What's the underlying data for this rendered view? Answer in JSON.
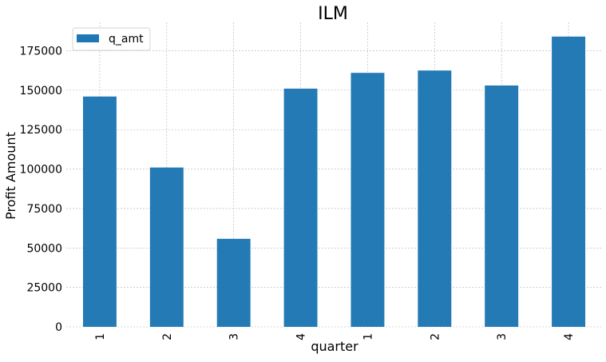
{
  "chart_data": {
    "type": "bar",
    "title": "ILM",
    "xlabel": "quarter",
    "ylabel": "Profit Amount",
    "categories": [
      "1",
      "2",
      "3",
      "4",
      "1",
      "2",
      "3",
      "4"
    ],
    "series": [
      {
        "name": "q_amt",
        "color": "#1f77b4",
        "values": [
          146000,
          101000,
          55800,
          151000,
          161000,
          162500,
          153000,
          184000
        ]
      }
    ],
    "ylim": [
      0,
      193000
    ],
    "yticks": [
      0,
      25000,
      50000,
      75000,
      100000,
      125000,
      150000,
      175000
    ],
    "ytick_labels": [
      "0",
      "25000",
      "50000",
      "75000",
      "100000",
      "125000",
      "150000",
      "175000"
    ],
    "xtick_rotation": "vertical",
    "grid": true,
    "legend_position": "top-left"
  }
}
